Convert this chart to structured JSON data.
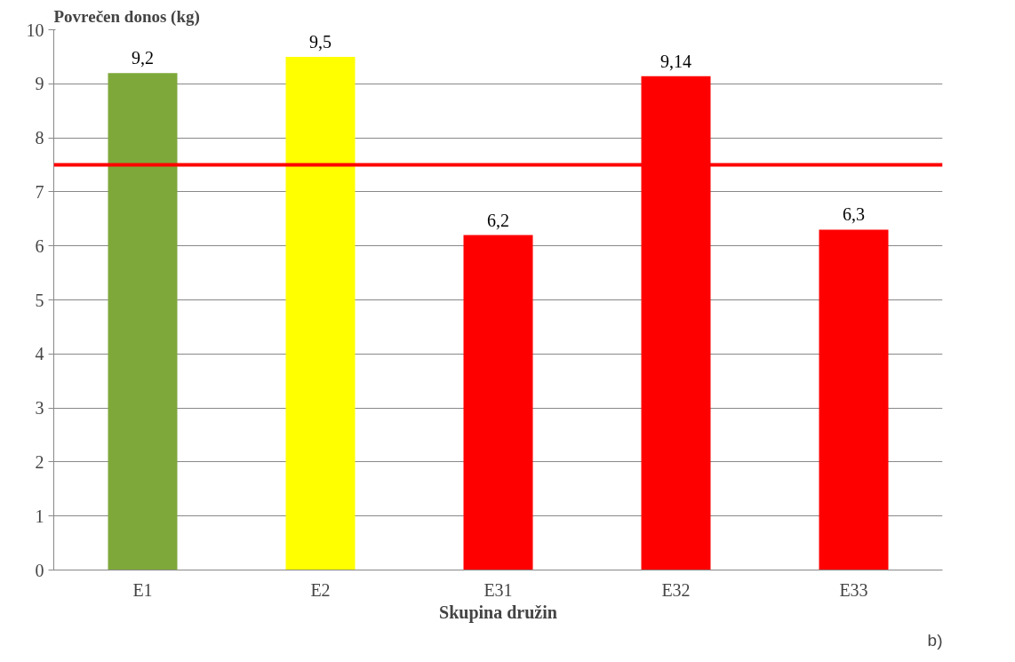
{
  "chart_data": {
    "type": "bar",
    "ylabel": "Povrečen donos (kg)",
    "xlabel": "Skupina družin",
    "categories": [
      "E1",
      "E2",
      "E31",
      "E32",
      "E33"
    ],
    "values": [
      9.2,
      9.5,
      6.2,
      9.14,
      6.3
    ],
    "colors": [
      "#7fa83a",
      "#ffff00",
      "#ff0000",
      "#ff0000",
      "#ff0000"
    ],
    "value_labels": [
      "9,2",
      "9,5",
      "6,2",
      "9,14",
      "6,3"
    ],
    "ylim": [
      0,
      10
    ],
    "yticks": [
      0,
      1,
      2,
      3,
      4,
      5,
      6,
      7,
      8,
      9,
      10
    ],
    "grid": "y",
    "ref_lines": [
      {
        "axis": "y",
        "value": 7.5,
        "color": "#ff0000"
      }
    ],
    "annotations": [
      "b)"
    ]
  }
}
